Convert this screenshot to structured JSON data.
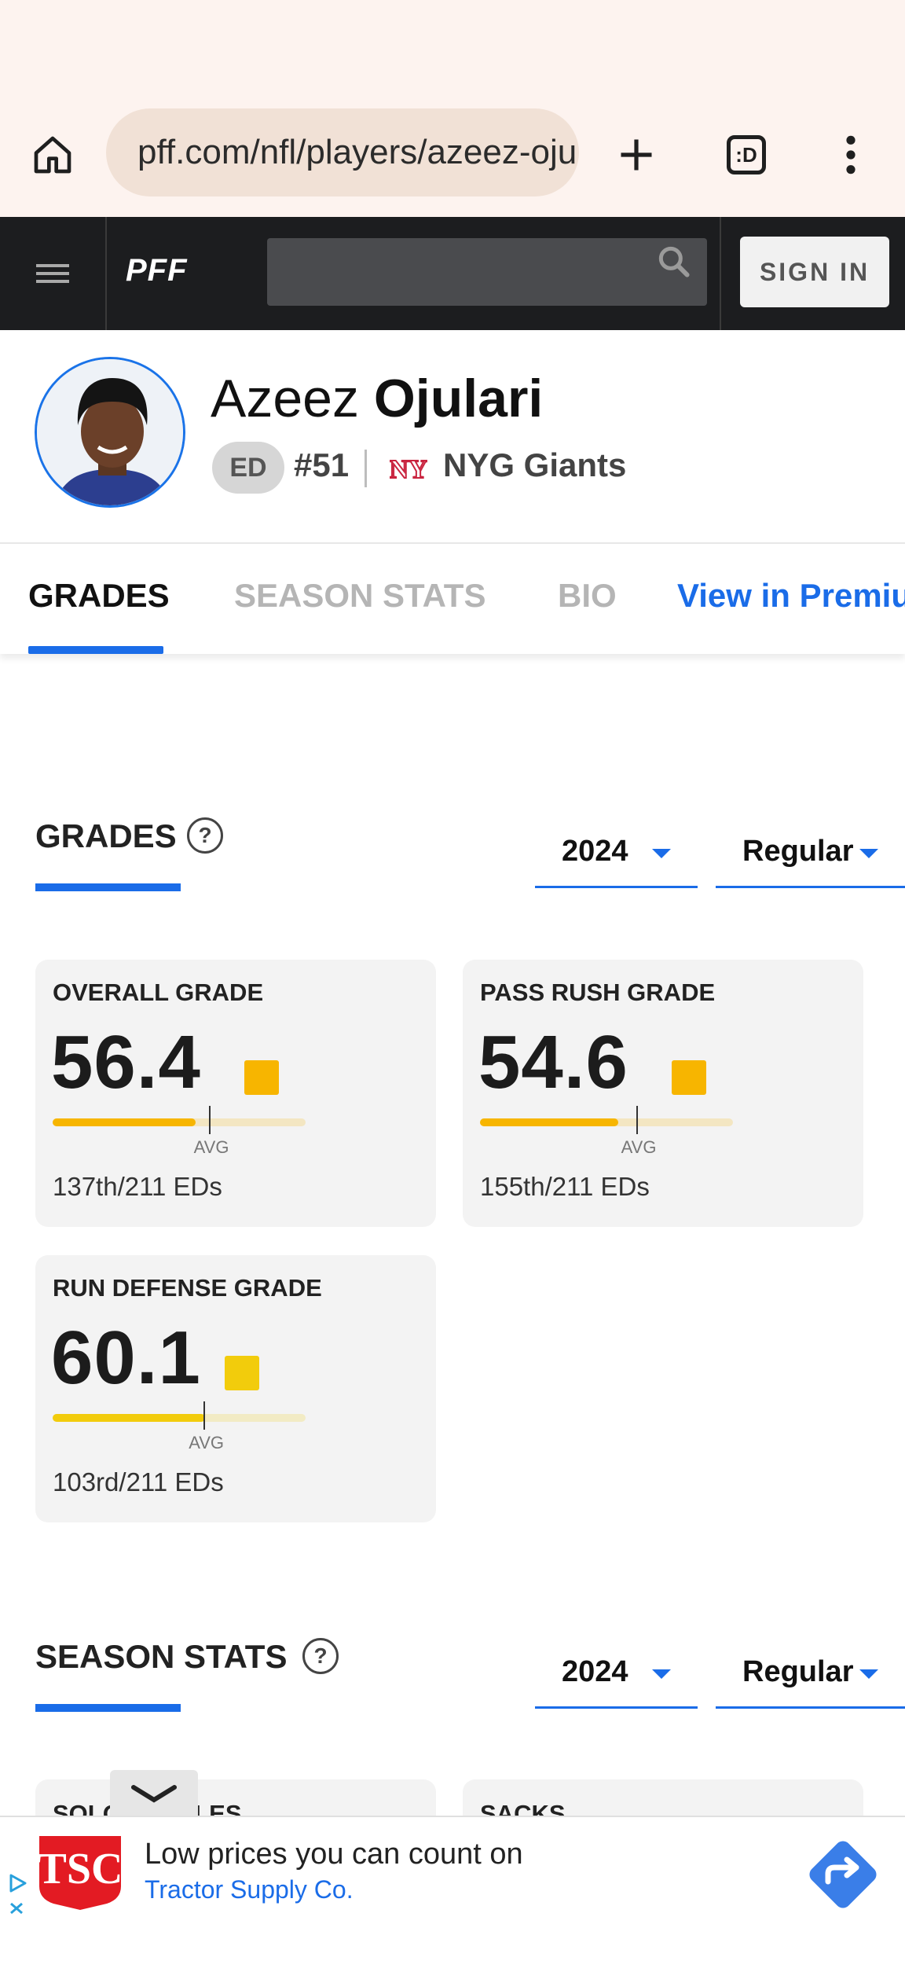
{
  "browser": {
    "url": "pff.com/nfl/players/azeez-ojulari/",
    "tab_count": ":D"
  },
  "header": {
    "logo": "PFF",
    "search_placeholder": "",
    "sign_in": "SIGN IN"
  },
  "player": {
    "first_name": "Azeez",
    "last_name": "Ojulari",
    "position": "ED",
    "number": "#51",
    "team_logo": "NY",
    "team": "NYG Giants"
  },
  "tabs": [
    {
      "label": "GRADES",
      "active": true
    },
    {
      "label": "SEASON STATS",
      "active": false
    },
    {
      "label": "BIO",
      "active": false
    },
    {
      "label": "View in Premium",
      "active": false
    }
  ],
  "grades_section": {
    "title": "GRADES",
    "help": "?",
    "year": "2024",
    "season_type": "Regular",
    "cards": [
      {
        "label": "OVERALL GRADE",
        "value": "56.4",
        "color": "#f7b500",
        "bar_fraction": 0.564,
        "avg_fraction": 0.62,
        "avg_label": "AVG",
        "rank": "137th/211 EDs"
      },
      {
        "label": "PASS RUSH GRADE",
        "value": "54.6",
        "color": "#f7b500",
        "bar_fraction": 0.546,
        "avg_fraction": 0.62,
        "avg_label": "AVG",
        "rank": "155th/211 EDs"
      },
      {
        "label": "RUN DEFENSE GRADE",
        "value": "60.1",
        "color": "#f2cc0c",
        "bar_fraction": 0.601,
        "avg_fraction": 0.6,
        "avg_label": "AVG",
        "rank": "103rd/211 EDs"
      }
    ]
  },
  "season_stats_section": {
    "title": "SEASON STATS",
    "help": "?",
    "year": "2024",
    "season_type": "Regular",
    "cards": [
      {
        "label": "SOLO TACKLES"
      },
      {
        "label": "SACKS"
      }
    ]
  },
  "ad": {
    "headline": "Low prices you can count on",
    "advertiser": "Tractor Supply Co.",
    "logo_text": "TSC",
    "brand_color": "#e31b23"
  }
}
